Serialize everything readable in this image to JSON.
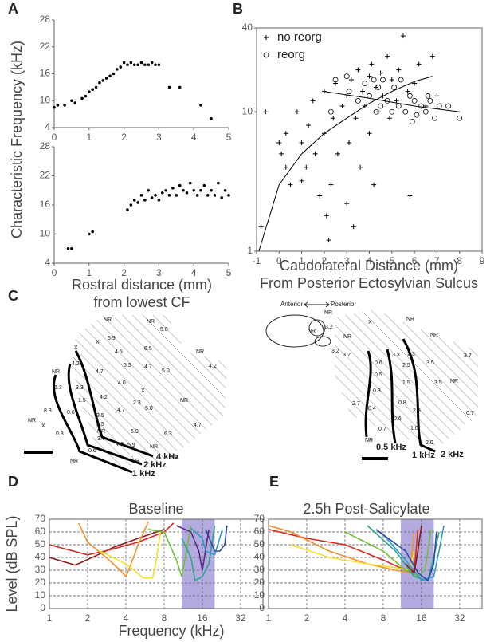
{
  "panel_labels": [
    "A",
    "B",
    "C",
    "D",
    "E"
  ],
  "chart_data": [
    {
      "type": "scatter",
      "color": "#000000",
      "marker": "dot",
      "y_label": "Characteristic Frequency (kHz)",
      "x": [
        0,
        0.1,
        0.3,
        0.5,
        0.6,
        0.8,
        0.9,
        1.0,
        1.1,
        1.2,
        1.3,
        1.4,
        1.5,
        1.6,
        1.7,
        1.8,
        1.9,
        2.0,
        2.1,
        2.2,
        2.3,
        2.4,
        2.5,
        2.6,
        2.7,
        2.8,
        2.9,
        3.0,
        3.3,
        3.6,
        4.2,
        4.5
      ],
      "values": [
        8.5,
        9,
        9,
        10,
        9.5,
        10.5,
        11,
        12,
        12.5,
        13,
        14,
        14.5,
        15,
        15.5,
        16,
        17,
        17.5,
        18.5,
        18,
        18.5,
        18,
        18,
        18.5,
        18,
        18,
        18.5,
        18,
        18,
        13,
        13,
        9,
        6
      ],
      "xlim": [
        0,
        5
      ],
      "xticks": [
        0,
        1,
        2,
        3,
        4,
        5
      ],
      "ylim": [
        4,
        28
      ],
      "yticks": [
        4,
        10,
        16,
        22,
        28
      ]
    },
    {
      "type": "scatter",
      "color": "#000000",
      "marker": "dot",
      "x_label": "Rostral distance (mm)",
      "x_sublabel": "from lowest CF",
      "x": [
        0.4,
        0.5,
        1.0,
        1.1,
        2.1,
        2.2,
        2.3,
        2.4,
        2.5,
        2.6,
        2.7,
        2.8,
        2.9,
        3.0,
        3.1,
        3.2,
        3.3,
        3.4,
        3.5,
        3.6,
        3.7,
        3.8,
        3.9,
        4.0,
        4.1,
        4.2,
        4.3,
        4.4,
        4.5,
        4.6,
        4.7,
        4.8,
        4.9,
        5.0
      ],
      "values": [
        7,
        7,
        10,
        10.5,
        15,
        16,
        17,
        16.5,
        18,
        17,
        19,
        17.5,
        18,
        17,
        18.5,
        19,
        18,
        19.5,
        18,
        20,
        19,
        18.5,
        20.5,
        19,
        18,
        19,
        20,
        18,
        19,
        18,
        20.5,
        17.5,
        19,
        18
      ],
      "xlim": [
        0,
        5
      ],
      "xticks": [
        0,
        1,
        2,
        3,
        4,
        5
      ],
      "ylim": [
        4,
        28
      ],
      "yticks": [
        4,
        10,
        16,
        22,
        28
      ]
    },
    {
      "type": "scatter",
      "box": true,
      "ylog": true,
      "legend": "top-left",
      "x_label": "Caudolateral Distance (mm)",
      "x_sublabel": "From Posterior Ectosylvian Sulcus",
      "xlim": [
        -1,
        9
      ],
      "xticks": [
        -1,
        0,
        1,
        2,
        3,
        4,
        5,
        6,
        7,
        8,
        9
      ],
      "ylim": [
        1,
        40
      ],
      "yticks": [
        1,
        10,
        40
      ],
      "series": [
        {
          "name": "no reorg",
          "color": "#000000",
          "marker": "plus",
          "x": [
            -0.8,
            -0.6,
            0,
            0.1,
            0.3,
            0.3,
            0.5,
            0.8,
            1,
            1,
            1.2,
            1.3,
            1.5,
            1.6,
            1.8,
            2,
            2,
            2.1,
            2.3,
            2.4,
            2.5,
            2.6,
            2.8,
            3,
            3,
            3.1,
            3.2,
            3.4,
            3.5,
            3.6,
            3.7,
            3.8,
            4,
            4,
            4.1,
            4.2,
            4.3,
            4.4,
            4.5,
            4.6,
            4.8,
            4.9,
            5,
            5.2,
            5.3,
            5.5,
            5.7,
            5.8,
            6,
            6.2,
            6.5,
            6.8,
            7,
            3.3,
            2.2
          ],
          "values": [
            1.5,
            10,
            6,
            5,
            7,
            4,
            3,
            10,
            6,
            3.2,
            4,
            8,
            12,
            5,
            2.5,
            7,
            14,
            1.8,
            3,
            9,
            16,
            5,
            11,
            13,
            2.2,
            6,
            17,
            9,
            20,
            4,
            14,
            11,
            18,
            7,
            22,
            3,
            15,
            10,
            19,
            13,
            25,
            9,
            17,
            12,
            20,
            35,
            14,
            2.5,
            16,
            22,
            11,
            25,
            13,
            1.5,
            1.2
          ]
        },
        {
          "name": "reorg",
          "color": "#000000",
          "marker": "circle",
          "x": [
            2.3,
            3.1,
            3.5,
            3.8,
            4,
            4.2,
            4.3,
            4.5,
            4.6,
            4.8,
            5,
            5.1,
            5.3,
            5.4,
            5.6,
            5.8,
            6,
            6.1,
            6.3,
            6.5,
            6.7,
            6.9,
            7.1,
            7.5,
            8,
            2.5,
            3,
            4.4,
            5.9,
            6.6
          ],
          "values": [
            10,
            14,
            12,
            16,
            13,
            17,
            10,
            11,
            17,
            12,
            10,
            15,
            11,
            17,
            10,
            13,
            12,
            9.5,
            11,
            10,
            12,
            9,
            11,
            11,
            9,
            17,
            18,
            15,
            8.5,
            13
          ]
        }
      ],
      "fits": [
        {
          "x": [
            -0.9,
            0,
            1,
            2,
            3,
            4,
            5,
            6,
            6.8
          ],
          "values": [
            1,
            3,
            5,
            7,
            9,
            11.5,
            14,
            16.5,
            18
          ]
        },
        {
          "x": [
            2,
            4,
            6,
            8
          ],
          "values": [
            14,
            12.5,
            11,
            10
          ]
        }
      ]
    },
    {
      "type": "line",
      "box": true,
      "xlog": true,
      "grid": true,
      "title": "Baseline",
      "y_label": "Level (dB SPL)",
      "x_label": "Frequency (kHz)",
      "band": [
        11,
        20
      ],
      "band_color": "#b3abe0",
      "xlim": [
        1,
        48
      ],
      "xticks": [
        1,
        2,
        4,
        8,
        16,
        32
      ],
      "ylim": [
        0,
        70
      ],
      "yticks": [
        0,
        10,
        20,
        30,
        40,
        50,
        60,
        70
      ],
      "series": [
        {
          "color": "#8b1a1a",
          "x": [
            1,
            1.6,
            2.4,
            3.2,
            5,
            8
          ],
          "values": [
            40,
            34,
            42,
            48,
            55,
            62
          ]
        },
        {
          "color": "#d42a1e",
          "x": [
            1,
            2,
            3,
            5,
            8,
            9.5
          ],
          "values": [
            50,
            42,
            46,
            52,
            60,
            67
          ]
        },
        {
          "color": "#f0902a",
          "x": [
            1.7,
            2,
            2.8,
            3.6,
            4,
            4.4,
            5,
            6
          ],
          "values": [
            67,
            52,
            40,
            30,
            25,
            35,
            50,
            68
          ]
        },
        {
          "color": "#f5e02a",
          "x": [
            2.5,
            4,
            5.5,
            6.5,
            7,
            7.5
          ],
          "values": [
            45,
            35,
            24,
            24,
            40,
            60
          ]
        },
        {
          "color": "#6fbf3a",
          "x": [
            6,
            8,
            10,
            11,
            12,
            13
          ],
          "values": [
            62,
            60,
            38,
            25,
            45,
            65
          ]
        },
        {
          "color": "#2aa68a",
          "x": [
            11,
            13,
            14,
            16,
            18,
            20
          ],
          "values": [
            55,
            40,
            22,
            25,
            35,
            65
          ]
        },
        {
          "color": "#2a9bc8",
          "x": [
            13,
            16,
            17,
            20,
            23
          ],
          "values": [
            63,
            55,
            45,
            42,
            62
          ]
        },
        {
          "color": "#2a4aa8",
          "x": [
            17,
            20,
            22,
            24,
            25
          ],
          "values": [
            62,
            45,
            45,
            50,
            65
          ]
        },
        {
          "color": "#5a2a8a",
          "x": [
            10,
            13,
            15,
            16,
            18
          ],
          "values": [
            65,
            60,
            45,
            30,
            62
          ]
        }
      ]
    },
    {
      "type": "line",
      "box": true,
      "xlog": true,
      "grid": true,
      "title": "2.5h Post-Salicylate",
      "band": [
        11,
        20
      ],
      "band_color": "#b3abe0",
      "xlim": [
        1,
        48
      ],
      "xticks": [
        1,
        2,
        4,
        8,
        16,
        32
      ],
      "ylim": [
        0,
        70
      ],
      "yticks": [
        0,
        10,
        20,
        30,
        40,
        50,
        60,
        70
      ],
      "series": [
        {
          "color": "#d42a1e",
          "x": [
            1,
            2,
            4,
            8,
            12,
            14,
            15
          ],
          "values": [
            62,
            55,
            50,
            38,
            30,
            28,
            62
          ]
        },
        {
          "color": "#f0902a",
          "x": [
            1,
            1.5,
            3,
            6,
            10,
            13,
            14
          ],
          "values": [
            65,
            60,
            45,
            35,
            30,
            28,
            60
          ]
        },
        {
          "color": "#f5e02a",
          "x": [
            1.5,
            3,
            6,
            10,
            13,
            14
          ],
          "values": [
            50,
            40,
            35,
            32,
            30,
            45
          ]
        },
        {
          "color": "#6fbf3a",
          "x": [
            4,
            8,
            12,
            15,
            17,
            18,
            19
          ],
          "values": [
            60,
            45,
            30,
            25,
            30,
            45,
            62
          ]
        },
        {
          "color": "#2aa68a",
          "x": [
            6,
            10,
            14,
            18,
            20,
            22
          ],
          "values": [
            65,
            45,
            25,
            22,
            40,
            60
          ]
        },
        {
          "color": "#2a9bc8",
          "x": [
            8,
            12,
            16,
            20,
            22,
            24
          ],
          "values": [
            58,
            38,
            22,
            25,
            45,
            65
          ]
        },
        {
          "color": "#2a4aa8",
          "x": [
            7,
            12,
            15,
            18,
            20,
            21
          ],
          "values": [
            62,
            45,
            28,
            22,
            35,
            60
          ]
        },
        {
          "color": "#8b1a1a",
          "x": [
            12,
            14,
            15,
            16
          ],
          "values": [
            35,
            28,
            45,
            65
          ]
        }
      ]
    }
  ],
  "panel_c": {
    "left": {
      "labels": [
        "NR",
        "NR",
        "5.8",
        "5.9",
        "4.5",
        "6.5",
        "X",
        "X",
        "4.2",
        "4.7",
        "5.3",
        "4.7",
        "5.0",
        "NR",
        "4.2",
        "NR",
        "6.3",
        "3.3",
        "4.0",
        "4.2",
        "X",
        "2.3",
        "4.7",
        "5.0",
        "NR",
        "1.5",
        "0.6",
        "3.5",
        "3.5",
        "NR",
        "5.9",
        "6.3",
        "4.7",
        "8.3",
        "NR",
        "X",
        "0.3",
        "3.7",
        "4.0",
        "5.9",
        "NR",
        "0.6",
        "NR",
        "NR",
        "NR"
      ],
      "iso": [
        "4 kHz",
        "2 kHz",
        "1 kHz"
      ]
    },
    "right": {
      "labels": [
        "NR",
        "3.2",
        "NR",
        "NR",
        "X",
        "NR",
        "3.3",
        "2.3",
        "NR",
        "3.2",
        "3.2",
        "0.6",
        "0.5",
        "2.5",
        "3.5",
        "3.7",
        "3.5",
        "NR",
        "0.3",
        "1.5",
        "2.7",
        "0.4",
        "0.8",
        "2.8",
        "0.7",
        "0.7",
        "0.6",
        "1.0",
        "NR",
        "2.0"
      ],
      "iso": [
        "0.5 kHz",
        "1 kHz",
        "2 kHz"
      ]
    },
    "orientation": [
      "Anterior",
      "Posterior"
    ]
  }
}
